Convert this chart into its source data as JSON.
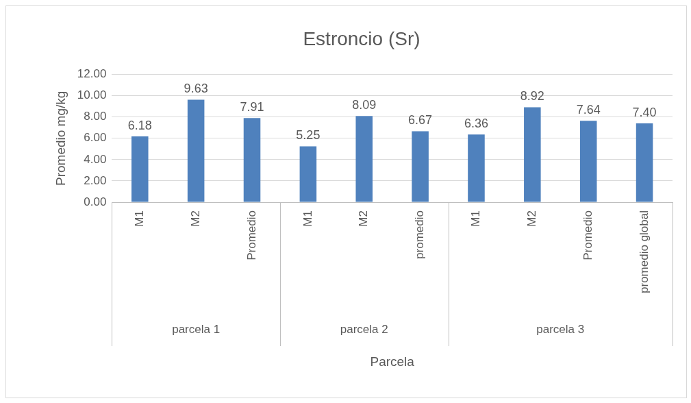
{
  "chart_data": {
    "type": "bar",
    "title": "Estroncio (Sr)",
    "xlabel": "Parcela",
    "ylabel": "Promedio mg/kg",
    "categories": [
      "M1",
      "M2",
      "Promedio",
      "M1",
      "M2",
      "promedio",
      "M1",
      "M2",
      "Promedio",
      "promedio global"
    ],
    "values": [
      6.18,
      9.63,
      7.91,
      5.25,
      8.09,
      6.67,
      6.36,
      8.92,
      7.64,
      7.4
    ],
    "value_labels": [
      "6.18",
      "9.63",
      "7.91",
      "5.25",
      "8.09",
      "6.67",
      "6.36",
      "8.92",
      "7.64",
      "7.40"
    ],
    "color": "#4f81bd",
    "ylim": [
      0,
      12
    ],
    "yticks": [
      {
        "value": 0,
        "label": "0.00"
      },
      {
        "value": 2,
        "label": "2.00"
      },
      {
        "value": 4,
        "label": "4.00"
      },
      {
        "value": 6,
        "label": "6.00"
      },
      {
        "value": 8,
        "label": "8.00"
      },
      {
        "value": 10,
        "label": "10.00"
      },
      {
        "value": 12,
        "label": "12.00"
      }
    ],
    "grid": "y",
    "legend": false,
    "annotations": [
      "parcela 1",
      "parcela 2",
      "parcela 3"
    ]
  }
}
